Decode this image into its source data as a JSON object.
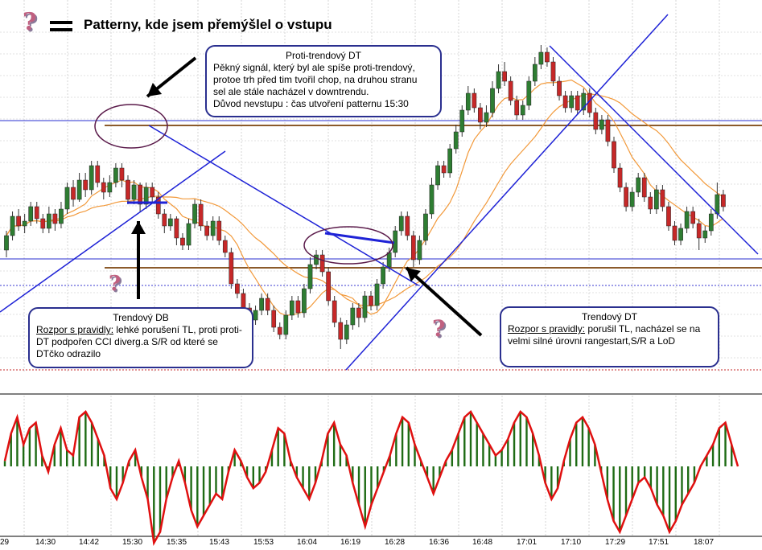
{
  "title": "Patterny, kde jsem přemýšlel o vstupu",
  "icons": {
    "question_mark": "question-mark-icon",
    "equals": "equals-icon"
  },
  "colors": {
    "bull": "#2e7d32",
    "bear": "#c62828",
    "trendline": "#1e22d6",
    "level": "#8b5a2b",
    "ma": "#f2993a",
    "cci_line": "#e01010",
    "cci_bar": "#1e6b14"
  },
  "annotations": {
    "proti_trend": {
      "heading": "Proti-trendový DT",
      "lines": [
        "Pěkný signál, který byl ale spíše proti-trendový,",
        "protoe trh před tim tvořil chop, na druhou stranu",
        "sel ale stále nacházel v downtrendu.",
        "Důvod nevstupu : čas utvoření patternu 15:30"
      ]
    },
    "trend_db": {
      "heading": "Trendový DB",
      "label": "Rozpor s pravidly:",
      "text": " lehké porušení TL, proti proti-DT podpořen CCI diverg.a S/R od které se DTčko odrazilo"
    },
    "trend_dt": {
      "heading": "Trendový DT",
      "label": "Rozpor s pravidly:",
      "text": " porušil TL, nacházel se na velmi silné úrovni rangestart,S/R a LoD"
    }
  },
  "chart_data": {
    "type": "candlestick",
    "x_ticks": [
      "29",
      "14:30",
      "14:42",
      "15:30",
      "15:35",
      "15:43",
      "15:53",
      "16:04",
      "16:19",
      "16:28",
      "16:36",
      "16:48",
      "17:01",
      "17:10",
      "17:29",
      "17:51",
      "18:07"
    ],
    "candles": [
      [
        -0.2,
        0.4,
        -0.5,
        0.6
      ],
      [
        0.4,
        1.2,
        0.2,
        1.4
      ],
      [
        1.2,
        0.8,
        0.6,
        1.5
      ],
      [
        0.8,
        1.0,
        0.5,
        1.3
      ],
      [
        1.0,
        1.6,
        0.8,
        1.8
      ],
      [
        1.6,
        1.1,
        0.9,
        1.8
      ],
      [
        1.1,
        0.7,
        0.5,
        1.3
      ],
      [
        0.7,
        1.3,
        0.5,
        1.6
      ],
      [
        1.3,
        0.9,
        0.6,
        1.5
      ],
      [
        0.9,
        1.5,
        0.7,
        1.8
      ],
      [
        1.5,
        2.4,
        1.3,
        2.6
      ],
      [
        2.4,
        1.9,
        1.6,
        2.7
      ],
      [
        1.9,
        2.7,
        1.8,
        3.0
      ],
      [
        2.7,
        2.3,
        2.0,
        3.0
      ],
      [
        2.3,
        3.3,
        2.1,
        3.5
      ],
      [
        3.3,
        2.6,
        2.4,
        3.5
      ],
      [
        2.6,
        2.2,
        1.9,
        2.8
      ],
      [
        2.2,
        2.6,
        2.0,
        2.9
      ],
      [
        2.6,
        3.2,
        2.4,
        3.4
      ],
      [
        3.2,
        2.7,
        2.4,
        3.4
      ],
      [
        2.7,
        1.9,
        1.7,
        2.9
      ],
      [
        1.9,
        2.5,
        1.7,
        2.7
      ],
      [
        2.5,
        1.7,
        1.4,
        2.6
      ],
      [
        1.7,
        2.4,
        1.5,
        2.6
      ],
      [
        2.4,
        2.0,
        1.8,
        2.6
      ],
      [
        2.0,
        1.3,
        1.1,
        2.2
      ],
      [
        1.3,
        0.8,
        0.5,
        1.5
      ],
      [
        0.8,
        1.1,
        0.6,
        1.3
      ],
      [
        1.1,
        0.3,
        0.0,
        1.2
      ],
      [
        0.3,
        0.0,
        -0.2,
        0.5
      ],
      [
        0.0,
        0.9,
        -0.2,
        1.1
      ],
      [
        0.9,
        1.7,
        0.7,
        1.9
      ],
      [
        1.7,
        0.8,
        0.6,
        1.9
      ],
      [
        0.8,
        0.4,
        0.2,
        1.0
      ],
      [
        0.4,
        1.0,
        0.2,
        1.2
      ],
      [
        1.0,
        0.2,
        0.0,
        1.2
      ],
      [
        0.2,
        -0.3,
        -0.5,
        0.4
      ],
      [
        -0.3,
        -1.6,
        -1.8,
        -0.1
      ],
      [
        -1.6,
        -2.0,
        -2.2,
        -1.4
      ],
      [
        -2.0,
        -2.6,
        -2.8,
        -1.8
      ],
      [
        -2.6,
        -3.1,
        -3.3,
        -2.4
      ],
      [
        -3.1,
        -2.7,
        -3.3,
        -2.5
      ],
      [
        -2.7,
        -2.2,
        -2.9,
        -2.0
      ],
      [
        -2.2,
        -2.7,
        -2.9,
        -2.0
      ],
      [
        -2.7,
        -3.4,
        -3.6,
        -2.5
      ],
      [
        -3.4,
        -3.7,
        -3.9,
        -3.2
      ],
      [
        -3.7,
        -2.9,
        -3.9,
        -2.7
      ],
      [
        -2.9,
        -2.3,
        -3.1,
        -2.1
      ],
      [
        -2.3,
        -2.8,
        -3.0,
        -2.1
      ],
      [
        -2.8,
        -1.8,
        -3.0,
        -1.6
      ],
      [
        -1.8,
        -0.8,
        -2.0,
        -0.5
      ],
      [
        -0.8,
        -0.4,
        -1.0,
        -0.2
      ],
      [
        -0.4,
        -1.1,
        -1.3,
        -0.2
      ],
      [
        -1.1,
        -2.3,
        -2.5,
        -0.9
      ],
      [
        -2.3,
        -3.2,
        -3.4,
        -2.1
      ],
      [
        -3.2,
        -3.9,
        -4.3,
        -3.0
      ],
      [
        -3.9,
        -3.3,
        -4.1,
        -3.1
      ],
      [
        -3.3,
        -2.6,
        -3.5,
        -2.4
      ],
      [
        -2.6,
        -3.0,
        -3.4,
        -2.4
      ],
      [
        -3.0,
        -2.1,
        -3.2,
        -1.9
      ],
      [
        -2.1,
        -2.5,
        -2.7,
        -1.9
      ],
      [
        -2.5,
        -1.6,
        -2.7,
        -1.4
      ],
      [
        -1.6,
        -0.9,
        -1.8,
        -0.7
      ],
      [
        -0.9,
        -0.3,
        -1.1,
        -0.1
      ],
      [
        -0.3,
        0.6,
        -0.5,
        0.8
      ],
      [
        0.6,
        1.2,
        0.4,
        1.4
      ],
      [
        1.2,
        0.4,
        0.2,
        1.4
      ],
      [
        0.4,
        -0.6,
        -0.9,
        0.6
      ],
      [
        -0.6,
        0.2,
        -0.8,
        0.4
      ],
      [
        0.2,
        1.3,
        0.0,
        1.5
      ],
      [
        1.3,
        2.5,
        1.1,
        2.8
      ],
      [
        2.5,
        3.3,
        2.3,
        3.5
      ],
      [
        3.3,
        3.0,
        2.8,
        3.5
      ],
      [
        3.0,
        4.0,
        2.8,
        4.2
      ],
      [
        4.0,
        4.7,
        3.8,
        5.0
      ],
      [
        4.7,
        5.6,
        4.5,
        5.8
      ],
      [
        5.6,
        6.3,
        5.4,
        6.6
      ],
      [
        6.3,
        5.7,
        5.5,
        6.5
      ],
      [
        5.7,
        5.1,
        4.8,
        5.9
      ],
      [
        5.1,
        5.5,
        4.9,
        5.8
      ],
      [
        5.5,
        6.5,
        5.3,
        6.8
      ],
      [
        6.5,
        7.2,
        6.3,
        7.5
      ],
      [
        7.2,
        6.8,
        6.6,
        7.6
      ],
      [
        6.8,
        6.0,
        5.8,
        7.0
      ],
      [
        6.0,
        5.4,
        5.2,
        6.2
      ],
      [
        5.4,
        5.8,
        5.2,
        6.0
      ],
      [
        5.8,
        6.8,
        5.6,
        7.0
      ],
      [
        6.8,
        7.5,
        6.6,
        7.8
      ],
      [
        7.5,
        8.0,
        7.3,
        8.3
      ],
      [
        8.0,
        7.6,
        7.4,
        8.2
      ],
      [
        7.6,
        6.8,
        6.6,
        7.8
      ],
      [
        6.8,
        6.2,
        6.0,
        7.0
      ],
      [
        6.2,
        5.7,
        5.5,
        6.4
      ],
      [
        5.7,
        6.2,
        5.5,
        6.4
      ],
      [
        6.2,
        5.6,
        5.4,
        6.4
      ],
      [
        5.6,
        6.3,
        5.4,
        6.5
      ],
      [
        6.3,
        5.5,
        5.3,
        6.5
      ],
      [
        5.5,
        4.8,
        4.6,
        5.7
      ],
      [
        4.8,
        5.2,
        4.6,
        5.4
      ],
      [
        5.2,
        4.3,
        4.1,
        5.4
      ],
      [
        4.3,
        3.2,
        3.0,
        4.5
      ],
      [
        3.2,
        2.4,
        2.2,
        3.4
      ],
      [
        2.4,
        1.6,
        1.4,
        2.6
      ],
      [
        1.6,
        2.2,
        1.4,
        2.4
      ],
      [
        2.2,
        2.8,
        2.0,
        3.0
      ],
      [
        2.8,
        2.0,
        1.8,
        3.0
      ],
      [
        2.0,
        1.5,
        1.3,
        2.2
      ],
      [
        1.5,
        2.3,
        1.3,
        2.5
      ],
      [
        2.3,
        1.6,
        1.4,
        2.5
      ],
      [
        1.6,
        0.8,
        0.6,
        1.8
      ],
      [
        0.8,
        0.2,
        0.0,
        1.0
      ],
      [
        0.2,
        0.7,
        0.0,
        0.9
      ],
      [
        0.7,
        1.4,
        0.5,
        1.6
      ],
      [
        1.4,
        0.9,
        0.7,
        1.6
      ],
      [
        0.9,
        0.3,
        -0.2,
        1.1
      ],
      [
        0.3,
        0.6,
        0.1,
        0.8
      ],
      [
        0.6,
        1.3,
        0.4,
        1.5
      ],
      [
        1.3,
        2.1,
        1.1,
        2.6
      ],
      [
        2.1,
        1.6,
        1.4,
        2.3
      ]
    ],
    "moving_averages": [
      "ma-short",
      "ma-long"
    ],
    "cci_indicator": {
      "type": "histogram+line",
      "values": [
        10,
        60,
        90,
        40,
        70,
        80,
        20,
        -10,
        40,
        70,
        30,
        20,
        90,
        100,
        80,
        50,
        20,
        -40,
        -60,
        -30,
        10,
        30,
        -20,
        -60,
        -140,
        -120,
        -60,
        -20,
        10,
        -30,
        -80,
        -110,
        -90,
        -70,
        -50,
        -60,
        -10,
        30,
        10,
        -20,
        -40,
        -30,
        -10,
        30,
        70,
        60,
        10,
        -20,
        -40,
        -60,
        -30,
        10,
        60,
        80,
        40,
        20,
        -30,
        -70,
        -110,
        -70,
        -40,
        -10,
        20,
        60,
        90,
        80,
        40,
        10,
        -20,
        -50,
        -20,
        10,
        30,
        60,
        90,
        100,
        80,
        60,
        40,
        20,
        30,
        50,
        80,
        100,
        90,
        60,
        20,
        -30,
        -60,
        -40,
        10,
        50,
        80,
        90,
        70,
        40,
        -10,
        -60,
        -100,
        -120,
        -90,
        -60,
        -30,
        -20,
        -40,
        -70,
        -90,
        -120,
        -100,
        -70,
        -50,
        -30,
        0,
        20,
        40,
        70,
        80,
        40,
        0
      ]
    }
  }
}
